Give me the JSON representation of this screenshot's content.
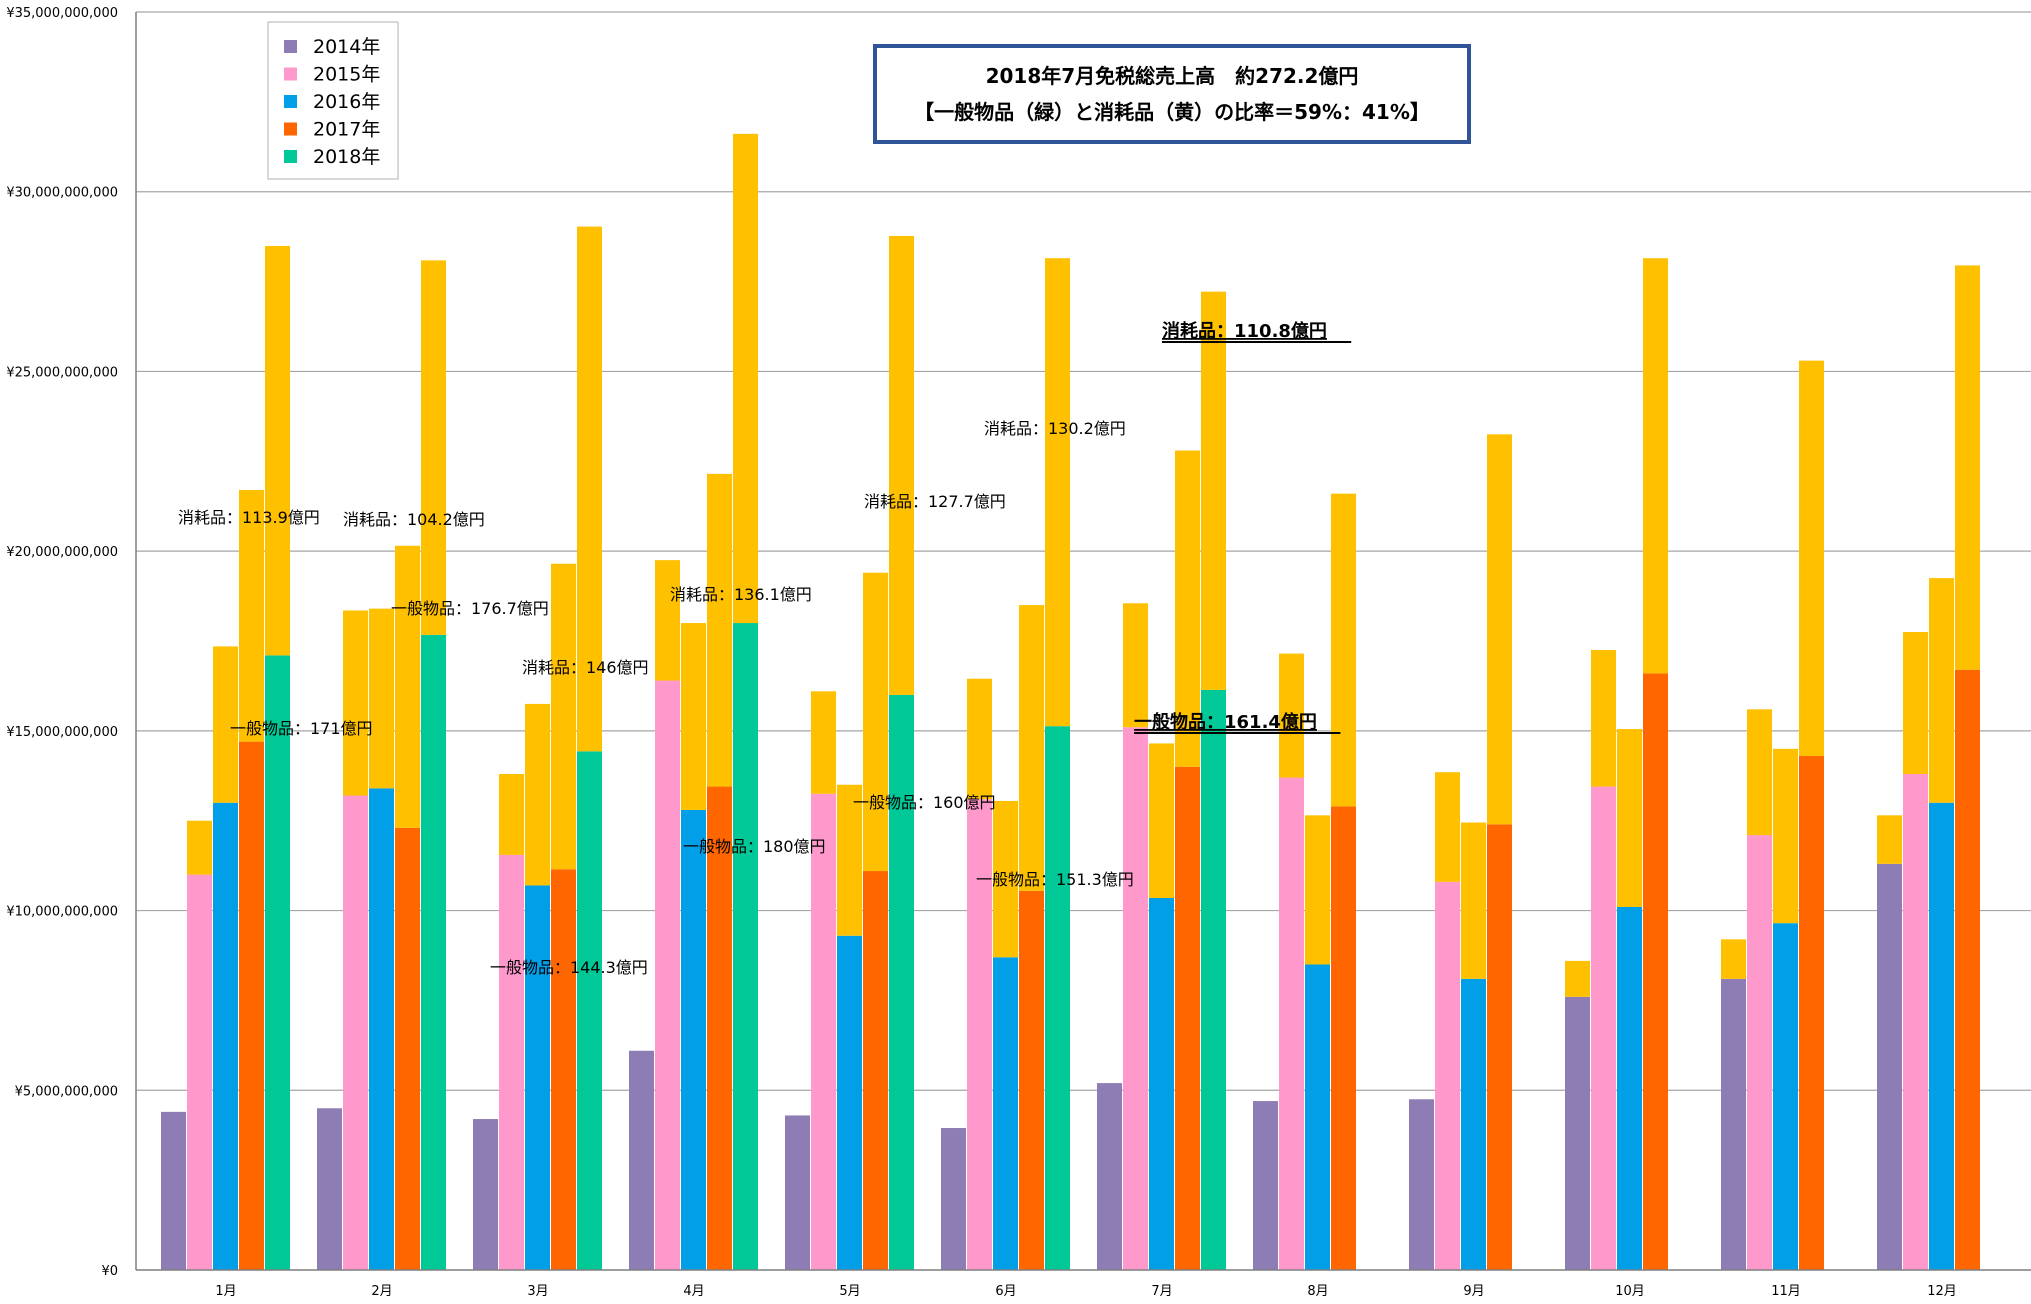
{
  "chart_data": {
    "type": "bar",
    "title": "2018年7月免税総売上高　約272.2億円",
    "subtitle": "【一般物品（緑）と消耗品（黄）の比率＝59%：41%】",
    "categories": [
      "1月",
      "2月",
      "3月",
      "4月",
      "5月",
      "6月",
      "7月",
      "8月",
      "9月",
      "10月",
      "11月",
      "12月"
    ],
    "ylim": [
      0,
      35000000000
    ],
    "yticks": [
      {
        "value": 0,
        "label": "¥0"
      },
      {
        "value": 5000000000,
        "label": "¥5,000,000,000"
      },
      {
        "value": 10000000000,
        "label": "¥10,000,000,000"
      },
      {
        "value": 15000000000,
        "label": "¥15,000,000,000"
      },
      {
        "value": 20000000000,
        "label": "¥20,000,000,000"
      },
      {
        "value": 25000000000,
        "label": "¥25,000,000,000"
      },
      {
        "value": 30000000000,
        "label": "¥30,000,000,000"
      },
      {
        "value": 35000000000,
        "label": "¥35,000,000,000"
      }
    ],
    "grid": true,
    "legend_position": "top-left",
    "consumables_color": "#ffc000",
    "series": [
      {
        "name": "2014年",
        "color": "#8e7cb4",
        "general": [
          4400000000,
          4500000000,
          4200000000,
          6100000000,
          4300000000,
          3950000000,
          5200000000,
          4700000000,
          4750000000,
          7600000000,
          8100000000,
          11300000000
        ],
        "consumables": [
          0,
          0,
          0,
          0,
          0,
          0,
          0,
          0,
          0,
          1000000000,
          1100000000,
          1350000000
        ]
      },
      {
        "name": "2015年",
        "color": "#ff99cc",
        "general": [
          11000000000,
          13200000000,
          11550000000,
          16400000000,
          13250000000,
          13100000000,
          15100000000,
          13700000000,
          10800000000,
          13450000000,
          12100000000,
          13800000000
        ],
        "consumables": [
          1500000000,
          5150000000,
          2250000000,
          3350000000,
          2850000000,
          3350000000,
          3450000000,
          3450000000,
          3050000000,
          3800000000,
          3500000000,
          3950000000
        ]
      },
      {
        "name": "2016年",
        "color": "#009fe8",
        "general": [
          13000000000,
          13400000000,
          10700000000,
          12800000000,
          9300000000,
          8700000000,
          10350000000,
          8500000000,
          8100000000,
          10100000000,
          9650000000,
          13000000000
        ],
        "consumables": [
          4350000000,
          5000000000,
          5050000000,
          5200000000,
          4200000000,
          4350000000,
          4300000000,
          4150000000,
          4350000000,
          4950000000,
          4850000000,
          6250000000
        ]
      },
      {
        "name": "2017年",
        "color": "#ff6600",
        "general": [
          14700000000,
          12300000000,
          11150000000,
          13450000000,
          11100000000,
          10550000000,
          14000000000,
          12900000000,
          12400000000,
          16600000000,
          14300000000,
          16700000000
        ],
        "consumables": [
          7000000000,
          7850000000,
          8500000000,
          8700000000,
          8300000000,
          7950000000,
          8800000000,
          8700000000,
          10850000000,
          11550000000,
          11000000000,
          11250000000
        ]
      },
      {
        "name": "2018年",
        "color": "#00c896",
        "general": [
          17100000000,
          17670000000,
          14430000000,
          18000000000,
          16000000000,
          15130000000,
          16140000000,
          null,
          null,
          null,
          null,
          null
        ],
        "consumables": [
          11390000000,
          10420000000,
          14600000000,
          13610000000,
          12770000000,
          13020000000,
          11080000000,
          null,
          null,
          null,
          null,
          null
        ]
      }
    ],
    "annotations": [
      {
        "month": 0,
        "kind": "consumables",
        "text": "消耗品：113.9億円"
      },
      {
        "month": 0,
        "kind": "general",
        "text": "一般物品：171億円"
      },
      {
        "month": 1,
        "kind": "consumables",
        "text": "消耗品：104.2億円"
      },
      {
        "month": 1,
        "kind": "general",
        "text": "一般物品：176.7億円"
      },
      {
        "month": 2,
        "kind": "consumables",
        "text": "消耗品：146億円"
      },
      {
        "month": 2,
        "kind": "general",
        "text": "一般物品：144.3億円"
      },
      {
        "month": 3,
        "kind": "consumables",
        "text": "消耗品：136.1億円"
      },
      {
        "month": 3,
        "kind": "general",
        "text": "一般物品：180億円"
      },
      {
        "month": 4,
        "kind": "consumables",
        "text": "消耗品：127.7億円"
      },
      {
        "month": 4,
        "kind": "general",
        "text": "一般物品：160億円"
      },
      {
        "month": 5,
        "kind": "consumables",
        "text": "消耗品：130.2億円"
      },
      {
        "month": 5,
        "kind": "general",
        "text": "一般物品：151.3億円"
      },
      {
        "month": 6,
        "kind": "consumables",
        "text": "消耗品：110.8億円",
        "emphasis": true
      },
      {
        "month": 6,
        "kind": "general",
        "text": "一般物品：161.4億円",
        "emphasis": true
      }
    ]
  }
}
